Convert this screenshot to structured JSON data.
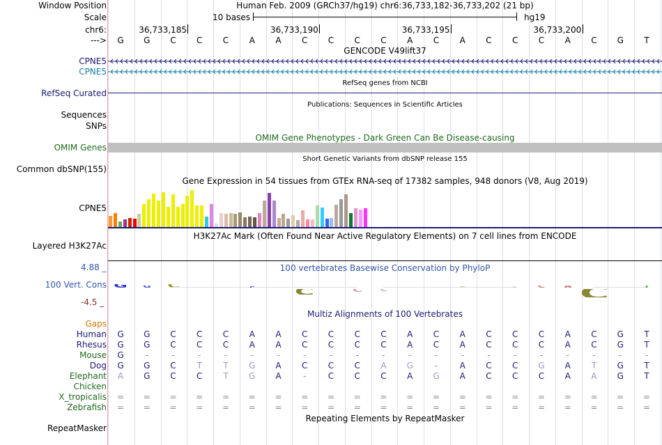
{
  "window": {
    "label": "Window Position",
    "text": "Human Feb. 2009 (GRCh37/hg19)   chr6:36,733,182-36,733,202 (21 bp)"
  },
  "scale": {
    "label": "Scale",
    "left_text": "10 bases",
    "right_text": "hg19"
  },
  "ruler": {
    "chrom_label": "chr6:",
    "positions": [
      "36,733,185",
      "36,733,190",
      "36,733,195",
      "36,733,200"
    ]
  },
  "sequence": {
    "arrow_label": "--->",
    "bases": [
      "G",
      "G",
      "C",
      "C",
      "C",
      "A",
      "A",
      "C",
      "C",
      "C",
      "C",
      "A",
      "C",
      "A",
      "C",
      "C",
      "C",
      "A",
      "C",
      "G",
      "T"
    ]
  },
  "gencode": {
    "title": "GENCODE V49lift37",
    "track1_label": "CPNE5",
    "track2_label": "CPNE5",
    "color1": "#1a1a73",
    "color2": "#0e7dab"
  },
  "refseq": {
    "title": "RefSeq genes from NCBI",
    "label": "RefSeq Curated",
    "color": "#1a1a73"
  },
  "publications": {
    "title": "Publications: Sequences in Scientific Articles",
    "label1": "Sequences",
    "label2": "SNPs"
  },
  "omim": {
    "title": "OMIM Gene Phenotypes - Dark Green Can Be Disease-causing",
    "label": "OMIM Genes",
    "color": "#1d6a1d"
  },
  "dbsnp": {
    "title": "Short Genetic Variants from dbSNP release 155",
    "label": "Common dbSNP(155)"
  },
  "gtex": {
    "title": "Gene Expression in 54 tissues from GTEx RNA-seq of 17382 samples, 948 donors (V8, Aug 2019)",
    "label": "CPNE5",
    "bars": [
      {
        "v": 0.3,
        "c": "#ff9933"
      },
      {
        "v": 0.38,
        "c": "#ff7f00"
      },
      {
        "v": 0.15,
        "c": "#66aa66"
      },
      {
        "v": 0.2,
        "c": "#aa3377"
      },
      {
        "v": 0.25,
        "c": "#cc2200"
      },
      {
        "v": 0.22,
        "c": "#ee0000"
      },
      {
        "v": 0.35,
        "c": "#cccc99"
      },
      {
        "v": 0.62,
        "c": "#eeee00"
      },
      {
        "v": 0.75,
        "c": "#eeee00"
      },
      {
        "v": 0.9,
        "c": "#eeee00"
      },
      {
        "v": 0.72,
        "c": "#eeee00"
      },
      {
        "v": 0.95,
        "c": "#eeee00"
      },
      {
        "v": 0.55,
        "c": "#eeee00"
      },
      {
        "v": 0.88,
        "c": "#eeee00"
      },
      {
        "v": 0.55,
        "c": "#eeee00"
      },
      {
        "v": 0.62,
        "c": "#eeee00"
      },
      {
        "v": 0.85,
        "c": "#eeee00"
      },
      {
        "v": 1.0,
        "c": "#eeee00"
      },
      {
        "v": 0.58,
        "c": "#eeee00"
      },
      {
        "v": 0.58,
        "c": "#eeee00"
      },
      {
        "v": 0.28,
        "c": "#33ccdd"
      },
      {
        "v": 0.62,
        "c": "#dd88dd"
      },
      {
        "v": 0.1,
        "c": "#dddddd"
      },
      {
        "v": 0.38,
        "c": "#eecccc"
      },
      {
        "v": 0.35,
        "c": "#ddbbaa"
      },
      {
        "v": 0.38,
        "c": "#ccbb99"
      },
      {
        "v": 0.36,
        "c": "#aa9977"
      },
      {
        "v": 0.4,
        "c": "#998866"
      },
      {
        "v": 0.26,
        "c": "#887766"
      },
      {
        "v": 0.28,
        "c": "#776655"
      },
      {
        "v": 0.26,
        "c": "#665544"
      },
      {
        "v": 0.38,
        "c": "#dd88bb"
      },
      {
        "v": 0.72,
        "c": "#bbaa99"
      },
      {
        "v": 0.92,
        "c": "#8844aa"
      },
      {
        "v": 0.72,
        "c": "#aa88cc"
      },
      {
        "v": 0.25,
        "c": "#ccaa99"
      },
      {
        "v": 0.35,
        "c": "#bbaa88"
      },
      {
        "v": 0.22,
        "c": "#999999"
      },
      {
        "v": 0.32,
        "c": "#ddccaa"
      },
      {
        "v": 0.18,
        "c": "#aaaaaa"
      },
      {
        "v": 0.45,
        "c": "#eeaaaa"
      },
      {
        "v": 0.2,
        "c": "#ff8899"
      },
      {
        "v": 0.2,
        "c": "#eebbcc"
      },
      {
        "v": 0.58,
        "c": "#aaddaa"
      },
      {
        "v": 0.52,
        "c": "#33ccff"
      },
      {
        "v": 0.22,
        "c": "#3366ff"
      },
      {
        "v": 0.25,
        "c": "#99bbff"
      },
      {
        "v": 0.6,
        "c": "#bbaa99"
      },
      {
        "v": 0.75,
        "c": "#999999"
      },
      {
        "v": 0.88,
        "c": "#aa9988"
      },
      {
        "v": 0.38,
        "c": "#117733"
      },
      {
        "v": 0.5,
        "c": "#dd99cc"
      },
      {
        "v": 0.48,
        "c": "#ff99ff"
      },
      {
        "v": 0.5,
        "c": "#ff33ff"
      }
    ]
  },
  "h3k27ac": {
    "title": "H3K27Ac Mark (Often Found Near Active Regulatory Elements) on 7 cell lines from ENCODE",
    "label": "Layered H3K27Ac"
  },
  "phylop": {
    "title": "100 vertebrates Basewise Conservation by PhyloP",
    "label": "100 Vert. Cons",
    "max": "4.88 _",
    "min": "-4.5 _",
    "max_color": "#3355aa",
    "min_color": "#883322",
    "logo": [
      {
        "c": "#3333cc",
        "h": 5,
        "t": "G"
      },
      {
        "c": "#4444cc",
        "h": 3,
        "t": "G"
      },
      {
        "c": "#999933",
        "h": 5,
        "t": "C"
      },
      {
        "c": "#dddddd",
        "h": 1,
        "t": ""
      },
      {
        "c": "#dddddd",
        "h": 1,
        "t": ""
      },
      {
        "c": "#3333cc",
        "h": 2,
        "t": "A"
      },
      {
        "c": "#dddddd",
        "h": 1,
        "t": ""
      },
      {
        "c": "#888833",
        "h": -8,
        "t": "C"
      },
      {
        "c": "#dddddd",
        "h": 1,
        "t": ""
      },
      {
        "c": "#cc9999",
        "h": -4,
        "t": "C"
      },
      {
        "c": "#aaaadd",
        "h": -3,
        "t": "C"
      },
      {
        "c": "#dddddd",
        "h": 1,
        "t": ""
      },
      {
        "c": "#dddddd",
        "h": 1,
        "t": ""
      },
      {
        "c": "#bbbb88",
        "h": 2,
        "t": "A"
      },
      {
        "c": "#dddddd",
        "h": 1,
        "t": ""
      },
      {
        "c": "#99cc99",
        "h": 2,
        "t": "C"
      },
      {
        "c": "#cc6666",
        "h": 3,
        "t": "C"
      },
      {
        "c": "#cc6666",
        "h": 3,
        "t": "A"
      },
      {
        "c": "#888833",
        "h": -12,
        "t": "C"
      },
      {
        "c": "#dddddd",
        "h": 1,
        "t": ""
      },
      {
        "c": "#44aa44",
        "h": 3,
        "t": "T"
      }
    ]
  },
  "multiz": {
    "title": "Multiz Alignments of 100 Vertebrates",
    "gaps_label": "Gaps",
    "gaps_color": "#cc7700",
    "species": [
      {
        "name": "Human",
        "color": "#1a1a73",
        "row": [
          "G",
          "G",
          "C",
          "C",
          "C",
          "A",
          "A",
          "C",
          "C",
          "C",
          "C",
          "A",
          "C",
          "A",
          "C",
          "C",
          "C",
          "A",
          "C",
          "G",
          "T"
        ]
      },
      {
        "name": "Rhesus",
        "color": "#1a1a73",
        "row": [
          "G",
          "G",
          "C",
          "C",
          "C",
          "A",
          "A",
          "C",
          "C",
          "C",
          "C",
          "A",
          "C",
          "A",
          "C",
          "C",
          "C",
          "A",
          "C",
          "G",
          "T"
        ]
      },
      {
        "name": "Mouse",
        "color": "#1d6a1d",
        "row": [
          "G",
          "-",
          "-",
          "-",
          "-",
          "-",
          "-",
          "-",
          "-",
          "-",
          "-",
          "-",
          "-",
          "-",
          "-",
          "-",
          "-",
          "-",
          "-",
          "-",
          "-"
        ]
      },
      {
        "name": "Dog",
        "color": "#1a1a73",
        "row": [
          "G",
          "G",
          "C",
          "T",
          "T",
          "G",
          "A",
          "C",
          "C",
          "C",
          "A",
          "G",
          "-",
          "A",
          "C",
          "C",
          "G",
          "A",
          "T",
          "G",
          "T"
        ]
      },
      {
        "name": "Elephant",
        "color": "#1d6a1d",
        "row": [
          "A",
          "G",
          "C",
          "C",
          "T",
          "G",
          "A",
          "-",
          "C",
          "C",
          "C",
          "A",
          "G",
          "A",
          "C",
          "C",
          "C",
          "A",
          "A",
          "G",
          "T"
        ]
      },
      {
        "name": "Chicken",
        "color": "#1d6a1d",
        "row": []
      },
      {
        "name": "X_tropicalis",
        "color": "#1d6a1d",
        "row": [
          "=",
          "=",
          "=",
          "=",
          "=",
          "=",
          "=",
          "=",
          "=",
          "=",
          "=",
          "=",
          "=",
          "=",
          "=",
          "=",
          "=",
          "=",
          "=",
          "=",
          "="
        ]
      },
      {
        "name": "Zebrafish",
        "color": "#1d6a1d",
        "row": [
          "=",
          "=",
          "=",
          "=",
          "=",
          "=",
          "=",
          "=",
          "=",
          "=",
          "=",
          "=",
          "=",
          "=",
          "=",
          "=",
          "=",
          "=",
          "=",
          "=",
          "="
        ]
      }
    ]
  },
  "repeatmasker": {
    "title": "Repeating Elements by RepeatMasker",
    "label": "RepeatMasker"
  }
}
